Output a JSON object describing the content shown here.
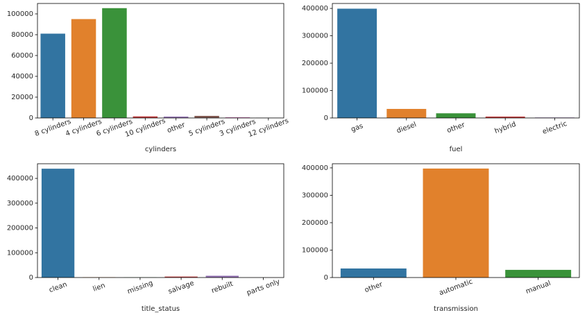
{
  "chart_data": [
    {
      "type": "bar",
      "xlabel": "cylinders",
      "categories": [
        "8 cylinders",
        "4 cylinders",
        "6 cylinders",
        "10 cylinders",
        "other",
        "5 cylinders",
        "3 cylinders",
        "12 cylinders"
      ],
      "values": [
        81000,
        95000,
        105500,
        1500,
        1300,
        2000,
        700,
        200
      ],
      "colors": [
        "#3274a1",
        "#e1812c",
        "#3a923a",
        "#c03d3e",
        "#9372b2",
        "#845b53",
        "#d684bd",
        "#7f7f7f"
      ],
      "ylim": [
        0,
        110000
      ],
      "yticks": [
        0,
        20000,
        40000,
        60000,
        80000,
        100000
      ]
    },
    {
      "type": "bar",
      "xlabel": "fuel",
      "categories": [
        "gas",
        "diesel",
        "other",
        "hybrid",
        "electric"
      ],
      "values": [
        399000,
        33000,
        17000,
        5000,
        1700
      ],
      "colors": [
        "#3274a1",
        "#e1812c",
        "#3a923a",
        "#c03d3e",
        "#9372b2"
      ],
      "ylim": [
        0,
        418000
      ],
      "yticks": [
        0,
        100000,
        200000,
        300000,
        400000
      ]
    },
    {
      "type": "bar",
      "xlabel": "title_status",
      "categories": [
        "clean",
        "lien",
        "missing",
        "salvage",
        "rebuilt",
        "parts only"
      ],
      "values": [
        439000,
        1400,
        800,
        3900,
        7200,
        200
      ],
      "colors": [
        "#3274a1",
        "#e1812c",
        "#3a923a",
        "#c03d3e",
        "#9372b2",
        "#845b53"
      ],
      "ylim": [
        0,
        459000
      ],
      "yticks": [
        0,
        100000,
        200000,
        300000,
        400000
      ]
    },
    {
      "type": "bar",
      "xlabel": "transmission",
      "categories": [
        "other",
        "automatic",
        "manual"
      ],
      "values": [
        33000,
        397500,
        28000
      ],
      "colors": [
        "#3274a1",
        "#e1812c",
        "#3a923a"
      ],
      "ylim": [
        0,
        415000
      ],
      "yticks": [
        0,
        100000,
        200000,
        300000,
        400000
      ]
    }
  ]
}
